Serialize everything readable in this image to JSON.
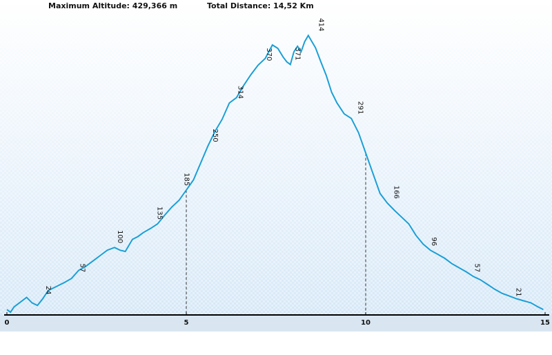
{
  "header": {
    "max_altitude": "Maximum Altitude: 429,366 m",
    "total_distance": "Total Distance: 14,52 Km"
  },
  "colors": {
    "line": "#1a9fd6",
    "axis": "#000000",
    "marker": "#333333",
    "bg_top": "#ffffff",
    "bg_bottom": "#d6e8f7"
  },
  "chart_data": {
    "type": "line",
    "title": "",
    "xlabel": "",
    "ylabel": "",
    "xlim": [
      0,
      15
    ],
    "ylim": [
      0,
      440
    ],
    "x_ticks": [
      0,
      5,
      10,
      15
    ],
    "vertical_markers": [
      5,
      10
    ],
    "grid": false,
    "series": [
      {
        "x": [
          0,
          0.1,
          0.2,
          0.35,
          0.55,
          0.7,
          0.85,
          1.0,
          1.15,
          1.3,
          1.45,
          1.6,
          1.8,
          2.0,
          2.2,
          2.4,
          2.6,
          2.8,
          3.0,
          3.15,
          3.3,
          3.5,
          3.65,
          3.8,
          4.0,
          4.2,
          4.4,
          4.6,
          4.8,
          5.0,
          5.2,
          5.4,
          5.6,
          5.8,
          6.0,
          6.2,
          6.4,
          6.6,
          6.8,
          7.0,
          7.2,
          7.4,
          7.55,
          7.7,
          7.8,
          7.9,
          8.0,
          8.1,
          8.2,
          8.3,
          8.4,
          8.5,
          8.6,
          8.75,
          8.9,
          9.05,
          9.2,
          9.4,
          9.6,
          9.8,
          10.0,
          10.2,
          10.4,
          10.6,
          10.8,
          11.0,
          11.2,
          11.4,
          11.6,
          11.8,
          12.0,
          12.2,
          12.4,
          12.6,
          12.8,
          13.0,
          13.2,
          13.4,
          13.6,
          13.8,
          14.0,
          14.2,
          14.4,
          14.6,
          14.8,
          14.95
        ],
        "y": [
          8,
          4,
          12,
          18,
          26,
          18,
          14,
          24,
          36,
          40,
          44,
          48,
          54,
          66,
          72,
          80,
          88,
          96,
          100,
          96,
          94,
          112,
          116,
          122,
          128,
          135,
          148,
          160,
          170,
          185,
          200,
          225,
          250,
          272,
          290,
          314,
          322,
          340,
          356,
          370,
          380,
          400,
          395,
          382,
          375,
          371,
          390,
          398,
          390,
          405,
          414,
          405,
          396,
          375,
          355,
          330,
          314,
          298,
          291,
          270,
          240,
          210,
          180,
          166,
          155,
          145,
          135,
          118,
          105,
          96,
          90,
          84,
          76,
          70,
          64,
          57,
          52,
          45,
          38,
          32,
          28,
          24,
          21,
          18,
          12,
          8
        ],
        "point_labels": [
          {
            "x": 1.1,
            "y": 24,
            "text": "24"
          },
          {
            "x": 2.05,
            "y": 57,
            "text": "57"
          },
          {
            "x": 3.1,
            "y": 100,
            "text": "100"
          },
          {
            "x": 4.2,
            "y": 135,
            "text": "135"
          },
          {
            "x": 4.95,
            "y": 185,
            "text": "185"
          },
          {
            "x": 5.75,
            "y": 250,
            "text": "250"
          },
          {
            "x": 6.45,
            "y": 314,
            "text": "314"
          },
          {
            "x": 7.25,
            "y": 370,
            "text": "370"
          },
          {
            "x": 8.05,
            "y": 371,
            "text": "371"
          },
          {
            "x": 8.7,
            "y": 414,
            "text": "414"
          },
          {
            "x": 9.8,
            "y": 291,
            "text": "291"
          },
          {
            "x": 10.8,
            "y": 166,
            "text": "166"
          },
          {
            "x": 11.85,
            "y": 96,
            "text": "96"
          },
          {
            "x": 13.05,
            "y": 57,
            "text": "57"
          },
          {
            "x": 14.2,
            "y": 21,
            "text": "21"
          }
        ]
      }
    ]
  }
}
